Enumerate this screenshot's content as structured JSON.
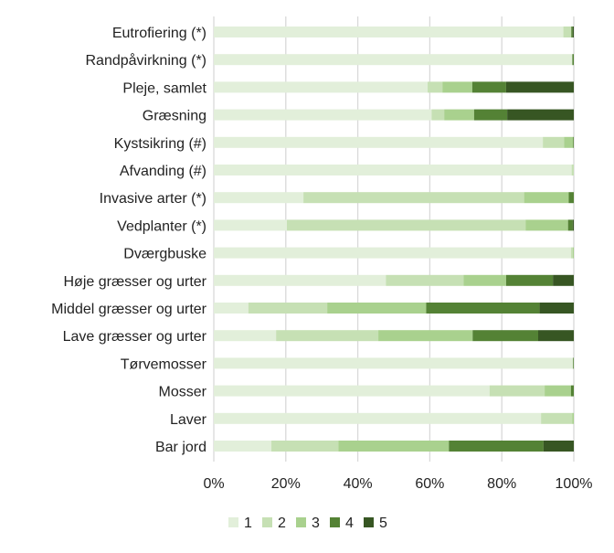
{
  "chart_data": {
    "type": "bar",
    "orientation": "horizontal",
    "stacked": "percent",
    "title": "",
    "xlabel": "",
    "ylabel": "",
    "xlim": [
      0,
      100
    ],
    "x_ticks": [
      "0%",
      "20%",
      "40%",
      "60%",
      "80%",
      "100%"
    ],
    "grid": true,
    "legend_position": "bottom",
    "categories": [
      "Eutrofiering (*)",
      "Randpåvirkning (*)",
      "Pleje, samlet",
      "Græsning",
      "Kystsikring (#)",
      "Afvanding (#)",
      "Invasive arter (*)",
      "Vedplanter (*)",
      "Dværgbuske",
      "Høje græsser og urter",
      "Middel græsser og urter",
      "Lave græsser og urter",
      "Tørvemosser",
      "Mosser",
      "Laver",
      "Bar jord"
    ],
    "series": [
      {
        "name": "1",
        "color": "#e2efda",
        "values": [
          97.1,
          99.6,
          59.4,
          60.5,
          91.4,
          99.4,
          24.9,
          20.3,
          99.2,
          47.8,
          9.6,
          17.3,
          99.8,
          76.6,
          90.9,
          16.0
        ]
      },
      {
        "name": "2",
        "color": "#c6e0b4",
        "values": [
          2.2,
          0,
          4.1,
          3.5,
          5.9,
          0.6,
          61.3,
          66.3,
          0.5,
          21.6,
          21.9,
          28.4,
          0,
          15.3,
          8.7,
          18.6
        ]
      },
      {
        "name": "3",
        "color": "#a9d18e",
        "values": [
          0,
          0,
          8.3,
          8.3,
          2.5,
          0,
          12.4,
          11.8,
          0.3,
          11.8,
          27.5,
          26.2,
          0,
          7.3,
          0.4,
          30.7
        ]
      },
      {
        "name": "4",
        "color": "#548235",
        "values": [
          0.4,
          0.4,
          9.4,
          9.2,
          0.2,
          0,
          1.4,
          1.3,
          0,
          13.0,
          31.5,
          18.2,
          0.2,
          0.8,
          0,
          26.3
        ]
      },
      {
        "name": "5",
        "color": "#375623",
        "values": [
          0.3,
          0,
          18.8,
          18.5,
          0,
          0,
          0,
          0.3,
          0,
          5.8,
          9.5,
          9.9,
          0,
          0,
          0,
          8.4
        ]
      }
    ]
  }
}
